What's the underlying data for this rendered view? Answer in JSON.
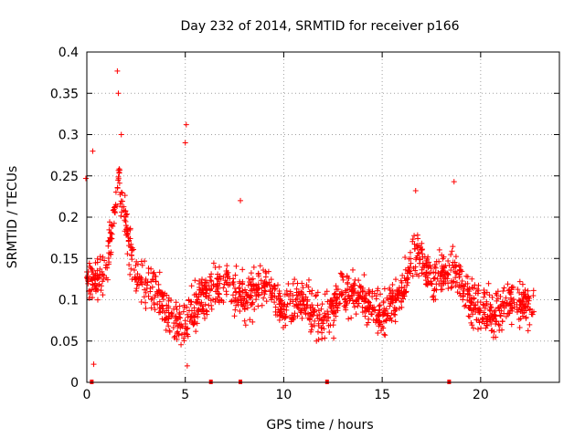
{
  "chart_data": {
    "type": "scatter",
    "title": "Day 232 of 2014, SRMTID for receiver p166",
    "xlabel": "GPS time / hours",
    "ylabel": "SRMTID / TECUs",
    "xlim": [
      0,
      24
    ],
    "ylim": [
      0,
      0.4
    ],
    "xticks": [
      "0",
      "5",
      "10",
      "15",
      "20"
    ],
    "xtick_values": [
      0,
      5,
      10,
      15,
      20
    ],
    "yticks": [
      "0",
      "0.05",
      "0.1",
      "0.15",
      "0.2",
      "0.25",
      "0.3",
      "0.35",
      "0.4"
    ],
    "ytick_values": [
      0,
      0.05,
      0.1,
      0.15,
      0.2,
      0.25,
      0.3,
      0.35,
      0.4
    ],
    "grid": true,
    "marker": "+",
    "series": [
      {
        "name": "SRMTID",
        "color": "#ff0000",
        "x_range": [
          0,
          22.7
        ],
        "trend": [
          {
            "x": 0.0,
            "y": 0.13
          },
          {
            "x": 0.5,
            "y": 0.12
          },
          {
            "x": 1.0,
            "y": 0.14
          },
          {
            "x": 1.3,
            "y": 0.19
          },
          {
            "x": 1.6,
            "y": 0.25
          },
          {
            "x": 1.9,
            "y": 0.2
          },
          {
            "x": 2.5,
            "y": 0.13
          },
          {
            "x": 3.5,
            "y": 0.11
          },
          {
            "x": 4.2,
            "y": 0.08
          },
          {
            "x": 5.0,
            "y": 0.07
          },
          {
            "x": 6.0,
            "y": 0.11
          },
          {
            "x": 7.0,
            "y": 0.12
          },
          {
            "x": 8.0,
            "y": 0.1
          },
          {
            "x": 9.0,
            "y": 0.12
          },
          {
            "x": 10.0,
            "y": 0.09
          },
          {
            "x": 11.0,
            "y": 0.1
          },
          {
            "x": 12.0,
            "y": 0.07
          },
          {
            "x": 13.0,
            "y": 0.11
          },
          {
            "x": 14.0,
            "y": 0.1
          },
          {
            "x": 15.0,
            "y": 0.08
          },
          {
            "x": 16.0,
            "y": 0.11
          },
          {
            "x": 16.8,
            "y": 0.16
          },
          {
            "x": 17.5,
            "y": 0.12
          },
          {
            "x": 18.5,
            "y": 0.14
          },
          {
            "x": 19.5,
            "y": 0.1
          },
          {
            "x": 20.5,
            "y": 0.08
          },
          {
            "x": 21.5,
            "y": 0.1
          },
          {
            "x": 22.7,
            "y": 0.09
          }
        ],
        "spikes": [
          {
            "x": 0.3,
            "y": 0.28
          },
          {
            "x": 1.55,
            "y": 0.377
          },
          {
            "x": 1.6,
            "y": 0.35
          },
          {
            "x": 1.75,
            "y": 0.3
          },
          {
            "x": 5.05,
            "y": 0.312
          },
          {
            "x": 5.0,
            "y": 0.29
          },
          {
            "x": 18.65,
            "y": 0.243
          },
          {
            "x": 16.7,
            "y": 0.232
          },
          {
            "x": 7.8,
            "y": 0.22
          },
          {
            "x": 0.35,
            "y": 0.022
          },
          {
            "x": 5.1,
            "y": 0.02
          },
          {
            "x": -0.05,
            "y": 0.247
          }
        ],
        "zero_points": [
          0.25,
          6.3,
          7.8,
          12.2,
          18.4
        ]
      }
    ]
  }
}
